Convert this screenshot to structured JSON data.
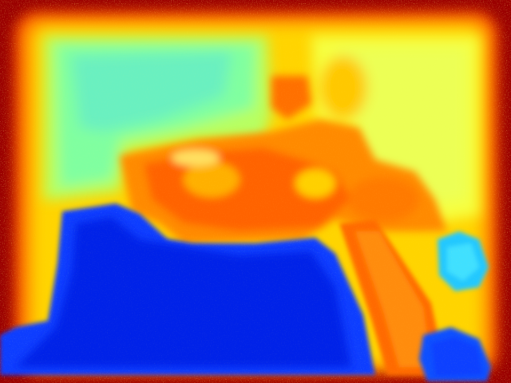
{
  "image": {
    "kind": "false-color depth map",
    "colormap": [
      "#8b0000",
      "#ff0000",
      "#ff8c00",
      "#ffd700",
      "#ffff40",
      "#80ffa0",
      "#40e0ff",
      "#1080ff",
      "#0040ff",
      "#0a1ccc"
    ],
    "regions": [
      "noisy-red-border",
      "orange-frame",
      "left-background-wall",
      "right-background-wall",
      "central-object",
      "foreground-block",
      "diagonal-strip",
      "small-near-blob-right",
      "small-near-blob-bottom"
    ]
  }
}
